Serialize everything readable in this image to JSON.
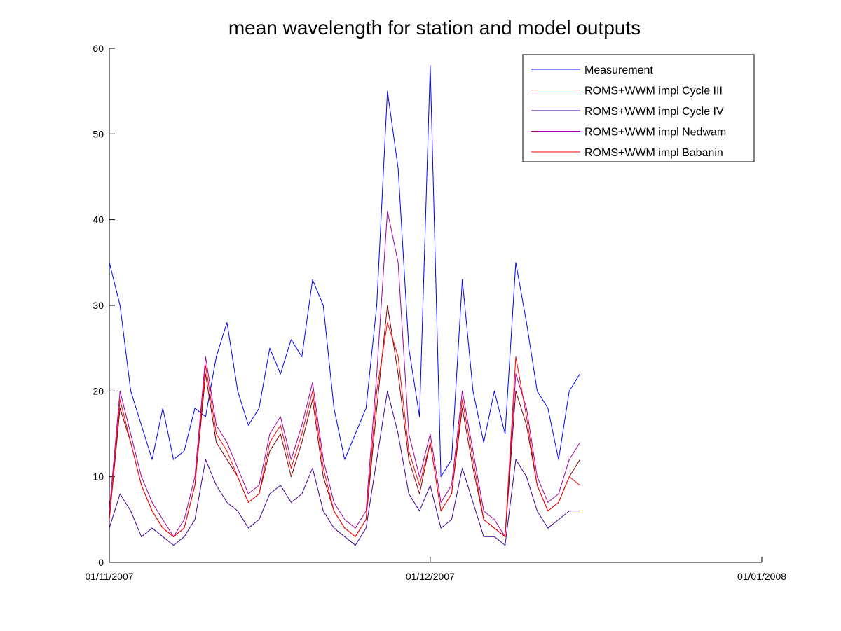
{
  "chart_data": {
    "type": "line",
    "title": "mean wavelength for station and model outputs",
    "xlabel": "",
    "ylabel": "",
    "x_range": [
      "2007-11-01",
      "2008-01-01"
    ],
    "ylim": [
      0,
      60
    ],
    "y_ticks": [
      0,
      10,
      20,
      30,
      40,
      50,
      60
    ],
    "x_ticks": [
      {
        "date": "2007-11-01",
        "label": "01/11/2007"
      },
      {
        "date": "2007-12-01",
        "label": "01/12/2007"
      },
      {
        "date": "2008-01-01",
        "label": "01/01/2008"
      }
    ],
    "grid": false,
    "legend_position": "top-right",
    "x": [
      "2007-11-01",
      "2007-11-02",
      "2007-11-03",
      "2007-11-04",
      "2007-11-05",
      "2007-11-06",
      "2007-11-07",
      "2007-11-08",
      "2007-11-09",
      "2007-11-10",
      "2007-11-11",
      "2007-11-12",
      "2007-11-13",
      "2007-11-14",
      "2007-11-15",
      "2007-11-16",
      "2007-11-17",
      "2007-11-18",
      "2007-11-19",
      "2007-11-20",
      "2007-11-21",
      "2007-11-22",
      "2007-11-23",
      "2007-11-24",
      "2007-11-25",
      "2007-11-26",
      "2007-11-27",
      "2007-11-28",
      "2007-11-29",
      "2007-11-30",
      "2007-12-01",
      "2007-12-02",
      "2007-12-03",
      "2007-12-04",
      "2007-12-05",
      "2007-12-06",
      "2007-12-07",
      "2007-12-08",
      "2007-12-09",
      "2007-12-10",
      "2007-12-11",
      "2007-12-12",
      "2007-12-13",
      "2007-12-14",
      "2007-12-15"
    ],
    "series": [
      {
        "name": "Measurement",
        "color": "#0000ff",
        "values": [
          35,
          30,
          20,
          16,
          12,
          18,
          12,
          13,
          18,
          17,
          24,
          28,
          20,
          16,
          18,
          25,
          22,
          26,
          24,
          33,
          30,
          18,
          12,
          15,
          18,
          30,
          55,
          46,
          25,
          17,
          58,
          10,
          12,
          33,
          20,
          14,
          20,
          15,
          35,
          28,
          20,
          18,
          12,
          20,
          22
        ]
      },
      {
        "name": "ROMS+WWM impl Cycle III",
        "color": "#800000",
        "values": [
          5,
          18,
          14,
          9,
          6,
          4,
          3,
          4,
          9,
          22,
          14,
          12,
          10,
          7,
          8,
          13,
          15,
          10,
          14,
          19,
          10,
          6,
          4,
          3,
          5,
          18,
          30,
          22,
          12,
          8,
          14,
          6,
          8,
          18,
          11,
          5,
          4,
          3,
          20,
          16,
          9,
          6,
          7,
          10,
          12
        ]
      },
      {
        "name": "ROMS+WWM impl Cycle IV",
        "color": "#3d0099",
        "values": [
          4,
          8,
          6,
          3,
          4,
          3,
          2,
          3,
          5,
          12,
          9,
          7,
          6,
          4,
          5,
          8,
          9,
          7,
          8,
          11,
          6,
          4,
          3,
          2,
          4,
          12,
          20,
          15,
          8,
          6,
          9,
          4,
          5,
          11,
          7,
          3,
          3,
          2,
          12,
          10,
          6,
          4,
          5,
          6,
          6
        ]
      },
      {
        "name": "ROMS+WWM impl Nedwam",
        "color": "#a000a0",
        "values": [
          6,
          20,
          15,
          10,
          7,
          5,
          3,
          5,
          10,
          24,
          16,
          14,
          11,
          8,
          9,
          15,
          17,
          12,
          16,
          21,
          12,
          7,
          5,
          4,
          6,
          22,
          41,
          35,
          15,
          10,
          15,
          7,
          9,
          20,
          13,
          6,
          5,
          3,
          22,
          18,
          10,
          7,
          8,
          12,
          14
        ]
      },
      {
        "name": "ROMS+WWM impl Babanin",
        "color": "#ff0000",
        "values": [
          5,
          19,
          14,
          9,
          6,
          4,
          3,
          4,
          9,
          23,
          15,
          13,
          10,
          7,
          8,
          14,
          16,
          11,
          15,
          20,
          11,
          6,
          4,
          3,
          5,
          20,
          28,
          24,
          13,
          9,
          14,
          6,
          8,
          19,
          12,
          5,
          4,
          3,
          24,
          17,
          9,
          6,
          7,
          10,
          9
        ]
      }
    ]
  }
}
